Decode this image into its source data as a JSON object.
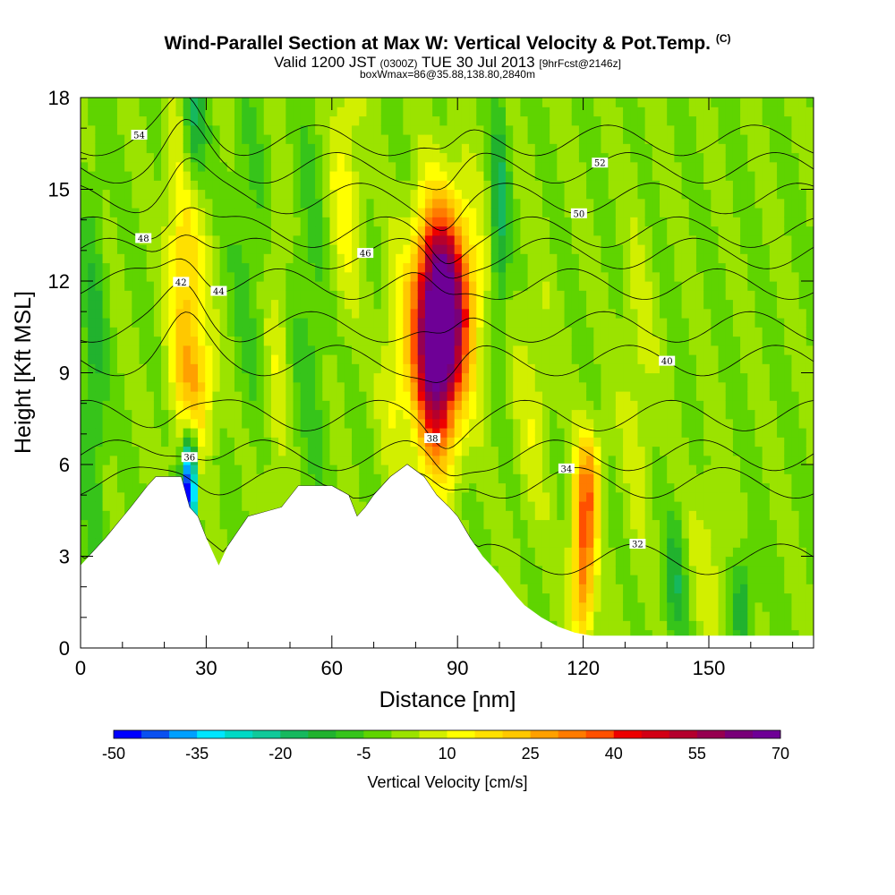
{
  "title": "Wind-Parallel Section at Max W: Vertical Velocity & Pot.Temp.",
  "title_mark": "(C)",
  "subtitle_main": "Valid 1200 JST",
  "subtitle_z": "(0300Z)",
  "subtitle_date": "TUE 30 Jul 2013",
  "subtitle_fcst": "[9hrFcst@2146z]",
  "boxline": "boxWmax=86@35.88,138.80,2840m",
  "chart_data": {
    "type": "heatmap",
    "title": "Wind-Parallel Section at Max W: Vertical Velocity & Pot.Temp.",
    "xlabel": "Distance [nm]",
    "ylabel": "Height [Kft MSL]",
    "xlim": [
      0,
      175
    ],
    "ylim": [
      0,
      18
    ],
    "x_ticks": [
      0,
      30,
      60,
      90,
      120,
      150
    ],
    "y_ticks": [
      0,
      3,
      6,
      9,
      12,
      15,
      18
    ],
    "colorbar": {
      "label": "Vertical Velocity [cm/s]",
      "tick_labels": [
        "-50",
        "-35",
        "-20",
        "-5",
        "10",
        "25",
        "40",
        "55",
        "70"
      ],
      "min": -50,
      "max": 70,
      "step": 5,
      "colors": [
        "#0000ff",
        "#0a50f0",
        "#00a0ff",
        "#00e6ff",
        "#00d9c5",
        "#10c99a",
        "#16b85e",
        "#21b22e",
        "#36c41a",
        "#5fd400",
        "#9be300",
        "#d2ef00",
        "#ffff00",
        "#ffe000",
        "#ffc800",
        "#ffa000",
        "#ff7b00",
        "#ff5000",
        "#ee0000",
        "#d20014",
        "#b4002d",
        "#960050",
        "#780078",
        "#6e0096"
      ]
    },
    "terrain_kft": [
      [
        0,
        2.7
      ],
      [
        6,
        3.6
      ],
      [
        12,
        4.6
      ],
      [
        16,
        5.3
      ],
      [
        18,
        5.6
      ],
      [
        24,
        5.6
      ],
      [
        26,
        4.6
      ],
      [
        28,
        4.3
      ],
      [
        30,
        3.6
      ],
      [
        33,
        2.7
      ],
      [
        35,
        3.3
      ],
      [
        40,
        4.3
      ],
      [
        48,
        4.6
      ],
      [
        52,
        5.3
      ],
      [
        60,
        5.3
      ],
      [
        64,
        5.0
      ],
      [
        66,
        4.3
      ],
      [
        68,
        4.6
      ],
      [
        70,
        5.0
      ],
      [
        74,
        5.6
      ],
      [
        78,
        6.0
      ],
      [
        82,
        5.6
      ],
      [
        85,
        5.0
      ],
      [
        88,
        4.6
      ],
      [
        90,
        4.3
      ],
      [
        93,
        3.6
      ],
      [
        96,
        3.0
      ],
      [
        100,
        2.4
      ],
      [
        104,
        1.7
      ],
      [
        106,
        1.4
      ],
      [
        110,
        1.0
      ],
      [
        114,
        0.7
      ],
      [
        118,
        0.5
      ],
      [
        122,
        0.4
      ],
      [
        130,
        0.4
      ],
      [
        170,
        0.4
      ],
      [
        175,
        0.4
      ]
    ],
    "theta_contours": [
      {
        "label": "32",
        "base": 2.9,
        "text_x": 133
      },
      {
        "label": "34",
        "base": 5.4,
        "text_x": 116
      },
      {
        "label": "36",
        "base": 6.3,
        "text_x": 26
      },
      {
        "label": "38",
        "base": 7.6,
        "text_x": 84
      },
      {
        "label": "40",
        "base": 9.4,
        "text_x": 140
      },
      {
        "label": "42",
        "base": 10.5,
        "text_x": 24
      },
      {
        "label": "44",
        "base": 11.9,
        "text_x": 33
      },
      {
        "label": "46",
        "base": 12.9,
        "text_x": 68
      },
      {
        "label": "48",
        "base": 13.6,
        "text_x": 15
      },
      {
        "label": "50",
        "base": 14.7,
        "text_x": 119
      },
      {
        "label": "52",
        "base": 15.7,
        "text_x": 124
      },
      {
        "label": "54",
        "base": 16.6,
        "text_x": 14
      }
    ]
  }
}
